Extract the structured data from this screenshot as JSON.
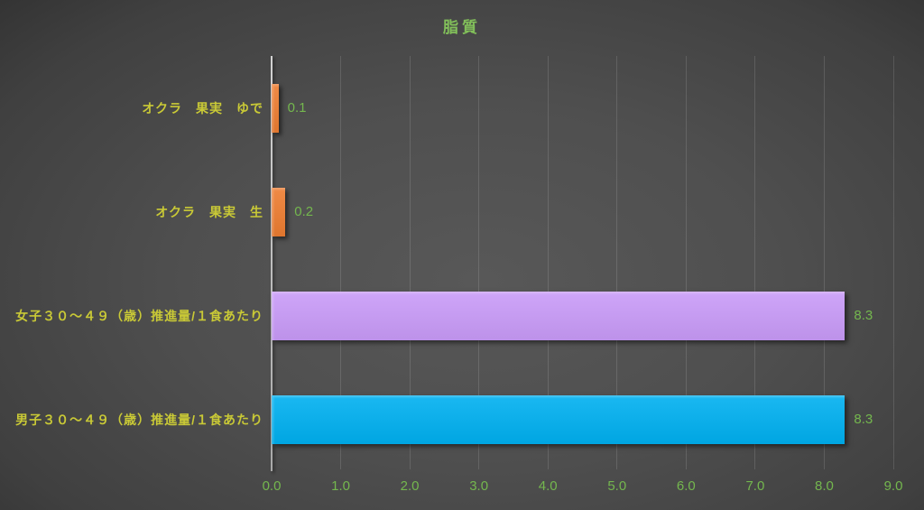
{
  "chart_data": {
    "type": "bar",
    "orientation": "horizontal",
    "title": "脂質",
    "categories": [
      "オクラ　果実　ゆで",
      "オクラ　果実　生",
      "女子３０～４９（歳）推進量/１食あたり",
      "男子３０～４９（歳）推進量/１食あたり"
    ],
    "values": [
      0.1,
      0.2,
      8.3,
      8.3
    ],
    "value_labels": [
      "0.1",
      "0.2",
      "8.3",
      "8.3"
    ],
    "bar_colors": [
      "#ed7d31",
      "#ed7d31",
      "#c99bf8",
      "#00b0f0"
    ],
    "bar_color_names": [
      "orange",
      "orange",
      "light-purple",
      "cyan-blue"
    ],
    "xlabel": "",
    "ylabel": "",
    "xlim": [
      0,
      9
    ],
    "x_tick_labels": [
      "0.0",
      "1.0",
      "2.0",
      "3.0",
      "4.0",
      "5.0",
      "6.0",
      "7.0",
      "8.0",
      "9.0"
    ],
    "grid": "vertical-gridlines-on",
    "legend_position": "none",
    "styles": {
      "title_color": "#82c05a",
      "category_label_color": "#c9c936",
      "value_label_color": "#74b74e",
      "tick_label_color": "#74b74e",
      "axis_line_color": "#bdbdbd",
      "gridline_color": "rgba(255,255,255,0.13)",
      "background_center": "#585858",
      "background_edge": "#222222"
    }
  }
}
